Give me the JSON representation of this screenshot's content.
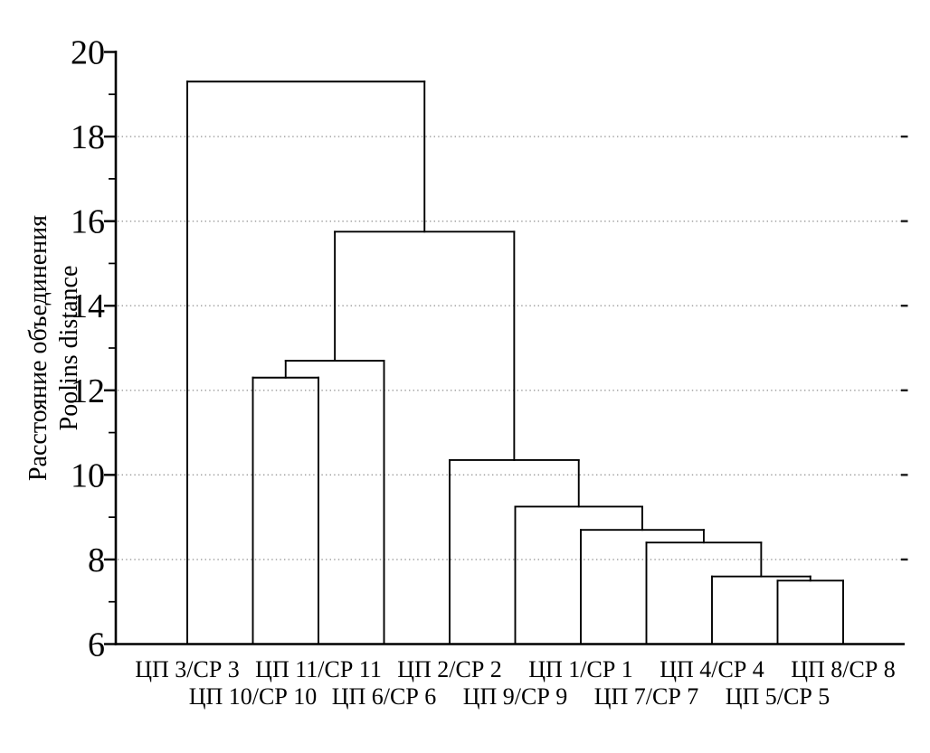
{
  "chart_data": {
    "type": "dendrogram",
    "title": "",
    "ylabel_line1": "Расстояние объединения",
    "ylabel_line2": "Poolins distance",
    "y_axis": {
      "min": 6,
      "max": 20,
      "major_ticks": [
        6,
        8,
        10,
        12,
        14,
        16,
        18,
        20
      ],
      "minor_ticks": [
        7,
        9,
        11,
        13,
        15,
        17,
        19
      ],
      "gridlines": [
        8,
        10,
        12,
        14,
        16,
        18
      ],
      "grid_style": "dotted"
    },
    "leaves": [
      "ЦП 3/СР 3",
      "ЦП 10/СР 10",
      "ЦП 11/СР 11",
      "ЦП 6/СР 6",
      "ЦП 2/СР 2",
      "ЦП 9/СР 9",
      "ЦП 1/СР 1",
      "ЦП 7/СР 7",
      "ЦП 4/СР 4",
      "ЦП 5/СР 5",
      "ЦП 8/СР 8"
    ],
    "merges": [
      {
        "a": "leaf:1",
        "b": "leaf:2",
        "height": 12.3
      },
      {
        "a": "merge:0",
        "b": "leaf:3",
        "height": 12.7
      },
      {
        "a": "leaf:9",
        "b": "leaf:10",
        "height": 7.5
      },
      {
        "a": "leaf:8",
        "b": "merge:2",
        "height": 7.6
      },
      {
        "a": "leaf:7",
        "b": "merge:3",
        "height": 8.4
      },
      {
        "a": "leaf:6",
        "b": "merge:4",
        "height": 8.7
      },
      {
        "a": "leaf:5",
        "b": "merge:5",
        "height": 9.25
      },
      {
        "a": "leaf:4",
        "b": "merge:6",
        "height": 10.35
      },
      {
        "a": "merge:1",
        "b": "merge:7",
        "height": 15.75
      },
      {
        "a": "leaf:0",
        "b": "merge:8",
        "height": 19.3
      }
    ],
    "colors": {
      "line": "#000000",
      "grid": "#999999",
      "grid_end_dash": "#1a1a1a",
      "text": "#000000",
      "background": "#ffffff"
    }
  }
}
